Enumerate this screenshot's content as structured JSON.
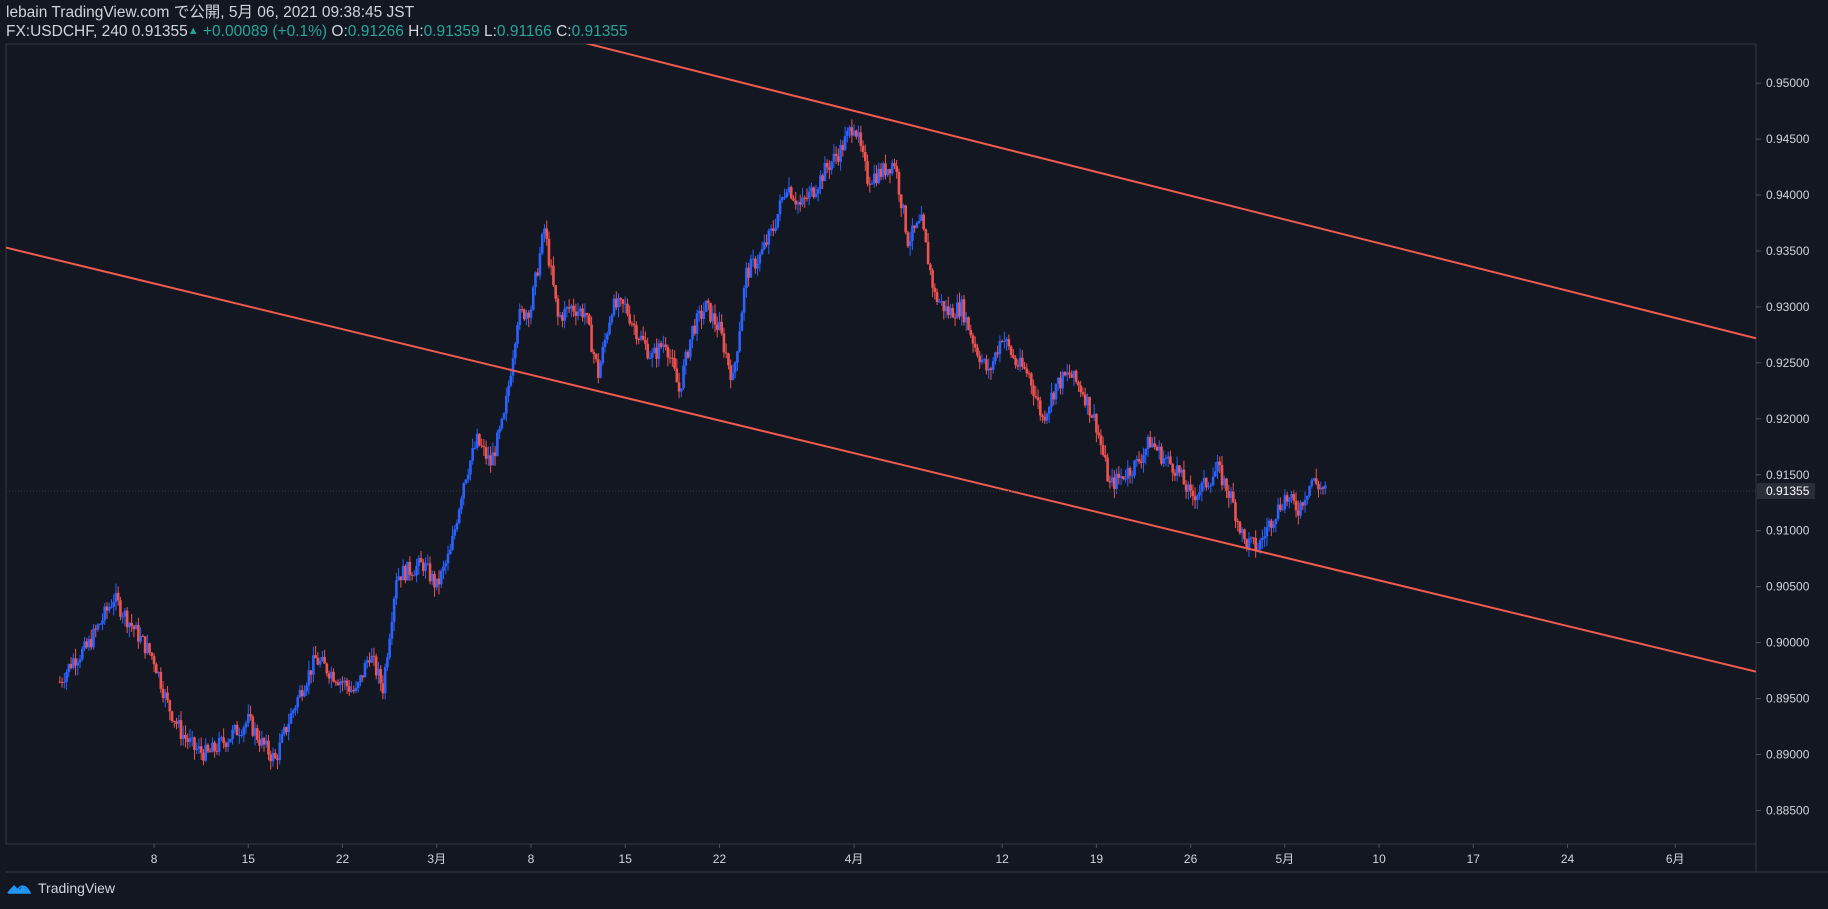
{
  "header": {
    "line1": "lebain TradingView.com で公開, 5月 06, 2021 09:38:45 JST",
    "symbol": "FX:USDCHF, 240",
    "last": "0.91355",
    "change": "+0.00089 (+0.1%)",
    "o_label": "O:",
    "o_value": "0.91266",
    "h_label": "H:",
    "h_value": "0.91359",
    "l_label": "L:",
    "l_value": "0.91166",
    "c_label": "C:",
    "c_value": "0.91355"
  },
  "footer": {
    "brand": "TradingView"
  },
  "colors": {
    "background": "#131722",
    "up": "#2962ff",
    "down": "#ef5350",
    "trendline": "#f05a4f",
    "text": "#d1d4dc",
    "price_tag_bg": "#2a2e39"
  },
  "chart_data": {
    "type": "candlestick",
    "symbol": "FX:USDCHF",
    "timeframe": "240",
    "y_axis_ticks": [
      "0.95000",
      "0.94500",
      "0.94000",
      "0.93500",
      "0.93000",
      "0.92500",
      "0.92000",
      "0.91500",
      "0.91000",
      "0.90500",
      "0.90000",
      "0.89500",
      "0.89000",
      "0.88500"
    ],
    "ylim": [
      0.882,
      0.9535
    ],
    "x_axis_ticks": [
      "8",
      "15",
      "22",
      "3月",
      "8",
      "15",
      "22",
      "4月",
      "12",
      "19",
      "26",
      "5月",
      "10",
      "17",
      "24",
      "6月"
    ],
    "last_price_label": "0.91355",
    "close_path": [
      {
        "date": "2021-02-01",
        "close": 0.8965
      },
      {
        "date": "2021-02-02",
        "close": 0.8985
      },
      {
        "date": "2021-02-03",
        "close": 0.8995
      },
      {
        "date": "2021-02-05",
        "close": 0.904
      },
      {
        "date": "2021-02-08",
        "close": 0.8985
      },
      {
        "date": "2021-02-09",
        "close": 0.8945
      },
      {
        "date": "2021-02-10",
        "close": 0.892
      },
      {
        "date": "2021-02-11",
        "close": 0.8905
      },
      {
        "date": "2021-02-12",
        "close": 0.89
      },
      {
        "date": "2021-02-15",
        "close": 0.893
      },
      {
        "date": "2021-02-16",
        "close": 0.891
      },
      {
        "date": "2021-02-17",
        "close": 0.8895
      },
      {
        "date": "2021-02-18",
        "close": 0.893
      },
      {
        "date": "2021-02-19",
        "close": 0.896
      },
      {
        "date": "2021-02-20",
        "close": 0.8985
      },
      {
        "date": "2021-02-22",
        "close": 0.8965
      },
      {
        "date": "2021-02-23",
        "close": 0.8955
      },
      {
        "date": "2021-02-24",
        "close": 0.899
      },
      {
        "date": "2021-02-25",
        "close": 0.896
      },
      {
        "date": "2021-02-26",
        "close": 0.906
      },
      {
        "date": "2021-02-28",
        "close": 0.907
      },
      {
        "date": "2021-03-01",
        "close": 0.905
      },
      {
        "date": "2021-03-02",
        "close": 0.908
      },
      {
        "date": "2021-03-03",
        "close": 0.9145
      },
      {
        "date": "2021-03-04",
        "close": 0.918
      },
      {
        "date": "2021-03-05",
        "close": 0.916
      },
      {
        "date": "2021-03-06",
        "close": 0.92
      },
      {
        "date": "2021-03-07",
        "close": 0.929
      },
      {
        "date": "2021-03-08",
        "close": 0.93
      },
      {
        "date": "2021-03-09",
        "close": 0.937
      },
      {
        "date": "2021-03-10",
        "close": 0.929
      },
      {
        "date": "2021-03-11",
        "close": 0.93
      },
      {
        "date": "2021-03-12",
        "close": 0.9295
      },
      {
        "date": "2021-03-13",
        "close": 0.924
      },
      {
        "date": "2021-03-14",
        "close": 0.93
      },
      {
        "date": "2021-03-15",
        "close": 0.93
      },
      {
        "date": "2021-03-16",
        "close": 0.9275
      },
      {
        "date": "2021-03-17",
        "close": 0.9255
      },
      {
        "date": "2021-03-18",
        "close": 0.927
      },
      {
        "date": "2021-03-19",
        "close": 0.9225
      },
      {
        "date": "2021-03-20",
        "close": 0.928
      },
      {
        "date": "2021-03-21",
        "close": 0.93
      },
      {
        "date": "2021-03-22",
        "close": 0.928
      },
      {
        "date": "2021-03-23",
        "close": 0.9235
      },
      {
        "date": "2021-03-24",
        "close": 0.933
      },
      {
        "date": "2021-03-25",
        "close": 0.9345
      },
      {
        "date": "2021-03-26",
        "close": 0.937
      },
      {
        "date": "2021-03-27",
        "close": 0.941
      },
      {
        "date": "2021-03-28",
        "close": 0.939
      },
      {
        "date": "2021-03-29",
        "close": 0.9405
      },
      {
        "date": "2021-03-30",
        "close": 0.9425
      },
      {
        "date": "2021-03-31",
        "close": 0.944
      },
      {
        "date": "2021-04-01",
        "close": 0.9465
      },
      {
        "date": "2021-04-02",
        "close": 0.9415
      },
      {
        "date": "2021-04-03",
        "close": 0.942
      },
      {
        "date": "2021-04-04",
        "close": 0.943
      },
      {
        "date": "2021-04-05",
        "close": 0.936
      },
      {
        "date": "2021-04-06",
        "close": 0.9375
      },
      {
        "date": "2021-04-07",
        "close": 0.931
      },
      {
        "date": "2021-04-08",
        "close": 0.9295
      },
      {
        "date": "2021-04-09",
        "close": 0.93
      },
      {
        "date": "2021-04-10",
        "close": 0.9265
      },
      {
        "date": "2021-04-11",
        "close": 0.924
      },
      {
        "date": "2021-04-12",
        "close": 0.9275
      },
      {
        "date": "2021-04-13",
        "close": 0.925
      },
      {
        "date": "2021-04-14",
        "close": 0.924
      },
      {
        "date": "2021-04-15",
        "close": 0.92
      },
      {
        "date": "2021-04-16",
        "close": 0.923
      },
      {
        "date": "2021-04-17",
        "close": 0.924
      },
      {
        "date": "2021-04-18",
        "close": 0.9225
      },
      {
        "date": "2021-04-19",
        "close": 0.9195
      },
      {
        "date": "2021-04-20",
        "close": 0.914
      },
      {
        "date": "2021-04-21",
        "close": 0.915
      },
      {
        "date": "2021-04-22",
        "close": 0.916
      },
      {
        "date": "2021-04-23",
        "close": 0.918
      },
      {
        "date": "2021-04-24",
        "close": 0.9165
      },
      {
        "date": "2021-04-25",
        "close": 0.9155
      },
      {
        "date": "2021-04-26",
        "close": 0.913
      },
      {
        "date": "2021-04-27",
        "close": 0.914
      },
      {
        "date": "2021-04-28",
        "close": 0.9155
      },
      {
        "date": "2021-04-29",
        "close": 0.913
      },
      {
        "date": "2021-04-30",
        "close": 0.909
      },
      {
        "date": "2021-05-01",
        "close": 0.9085
      },
      {
        "date": "2021-05-02",
        "close": 0.911
      },
      {
        "date": "2021-05-03",
        "close": 0.913
      },
      {
        "date": "2021-05-04",
        "close": 0.912
      },
      {
        "date": "2021-05-05",
        "close": 0.9145
      },
      {
        "date": "2021-05-06",
        "close": 0.91355
      }
    ],
    "trendlines": [
      {
        "name": "upper",
        "start": {
          "date": "2021-03-09",
          "value": 0.9545
        },
        "end": {
          "date": "2021-06-07",
          "value": 0.9272
        }
      },
      {
        "name": "lower",
        "start": {
          "date": "2021-01-28",
          "value": 0.9353
        },
        "end": {
          "date": "2021-06-07",
          "value": 0.8974
        }
      }
    ],
    "xlim": [
      "2021-01-28",
      "2021-06-07"
    ]
  }
}
